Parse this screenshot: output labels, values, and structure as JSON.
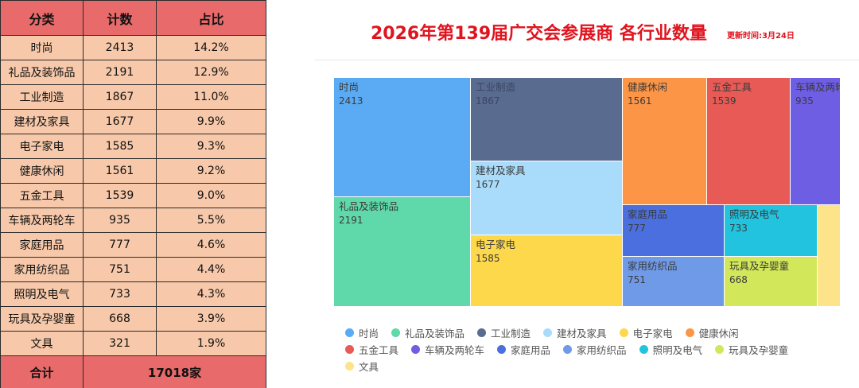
{
  "table": {
    "headers": [
      "分类",
      "计数",
      "占比"
    ],
    "rows": [
      [
        "时尚",
        "2413",
        "14.2%"
      ],
      [
        "礼品及装饰品",
        "2191",
        "12.9%"
      ],
      [
        "工业制造",
        "1867",
        "11.0%"
      ],
      [
        "建材及家具",
        "1677",
        "9.9%"
      ],
      [
        "电子家电",
        "1585",
        "9.3%"
      ],
      [
        "健康休闲",
        "1561",
        "9.2%"
      ],
      [
        "五金工具",
        "1539",
        "9.0%"
      ],
      [
        "车辆及两轮车",
        "935",
        "5.5%"
      ],
      [
        "家庭用品",
        "777",
        "4.6%"
      ],
      [
        "家用纺织品",
        "751",
        "4.4%"
      ],
      [
        "照明及电气",
        "733",
        "4.3%"
      ],
      [
        "玩具及孕婴童",
        "668",
        "3.9%"
      ],
      [
        "文具",
        "321",
        "1.9%"
      ]
    ],
    "total_label": "合计",
    "total_value": "17018家"
  },
  "chart": {
    "update_time": "更新时间:3月24日"
  },
  "chart_data": {
    "type": "treemap",
    "title": "2026年第139届广交会参展商 各行业数量",
    "series": [
      {
        "name": "时尚",
        "value": 2413,
        "color": "#5aabf4"
      },
      {
        "name": "礼品及装饰品",
        "value": 2191,
        "color": "#5fd8aa"
      },
      {
        "name": "工业制造",
        "value": 1867,
        "color": "#5a6b90"
      },
      {
        "name": "建材及家具",
        "value": 1677,
        "color": "#a9dcfa"
      },
      {
        "name": "电子家电",
        "value": 1585,
        "color": "#fdd84b"
      },
      {
        "name": "健康休闲",
        "value": 1561,
        "color": "#fc9546"
      },
      {
        "name": "五金工具",
        "value": 1539,
        "color": "#e75a55"
      },
      {
        "name": "车辆及两轮车",
        "value": 935,
        "color": "#6e5ee3"
      },
      {
        "name": "家庭用品",
        "value": 777,
        "color": "#4b6fdf"
      },
      {
        "name": "家用纺织品",
        "value": 751,
        "color": "#6f9ae8"
      },
      {
        "name": "照明及电气",
        "value": 733,
        "color": "#21c3df"
      },
      {
        "name": "玩具及孕婴童",
        "value": 668,
        "color": "#d2e85a"
      },
      {
        "name": "文具",
        "value": 321,
        "color": "#fde38a"
      }
    ],
    "legend_position": "bottom"
  }
}
